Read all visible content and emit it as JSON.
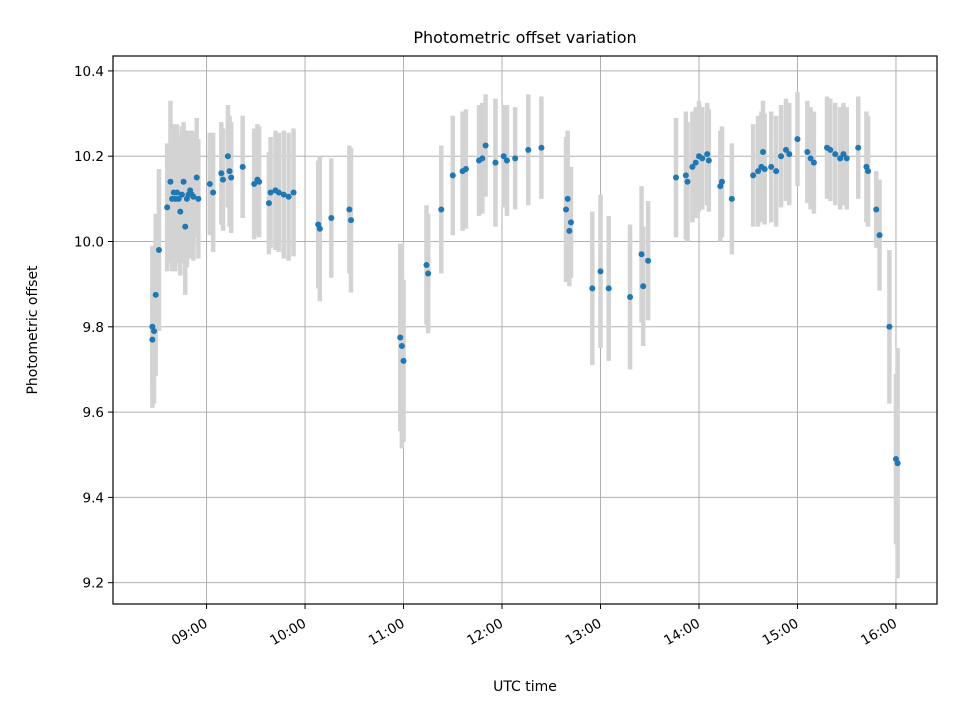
{
  "chart_data": {
    "type": "scatter",
    "title": "Photometric offset variation",
    "xlabel": "UTC time",
    "ylabel": "Photometric offset",
    "xlim": [
      "08:03",
      "16:25"
    ],
    "ylim": [
      9.15,
      10.435
    ],
    "grid": true,
    "xticks": [
      "09:00",
      "10:00",
      "11:00",
      "12:00",
      "13:00",
      "14:00",
      "15:00",
      "16:00"
    ],
    "yticks": [
      "9.2",
      "9.4",
      "9.6",
      "9.8",
      "10.0",
      "10.2",
      "10.4"
    ],
    "colors": {
      "point": "#1f77b4",
      "errorbar": "#d3d3d3",
      "grid": "#b0b0b0"
    },
    "points": [
      {
        "x": "08:27",
        "y": 9.77,
        "err": 0.12
      },
      {
        "x": "08:27",
        "y": 9.8,
        "err": 0.19
      },
      {
        "x": "08:28",
        "y": 9.79,
        "err": 0.17
      },
      {
        "x": "08:29",
        "y": 9.875,
        "err": 0.19
      },
      {
        "x": "08:31",
        "y": 9.98,
        "err": 0.19
      },
      {
        "x": "08:36",
        "y": 10.08,
        "err": 0.15
      },
      {
        "x": "08:38",
        "y": 10.14,
        "err": 0.19
      },
      {
        "x": "08:39",
        "y": 10.1,
        "err": 0.17
      },
      {
        "x": "08:40",
        "y": 10.115,
        "err": 0.16
      },
      {
        "x": "08:41",
        "y": 10.1,
        "err": 0.17
      },
      {
        "x": "08:42",
        "y": 10.115,
        "err": 0.16
      },
      {
        "x": "08:43",
        "y": 10.1,
        "err": 0.15
      },
      {
        "x": "08:44",
        "y": 10.07,
        "err": 0.15
      },
      {
        "x": "08:45",
        "y": 10.11,
        "err": 0.16
      },
      {
        "x": "08:46",
        "y": 10.14,
        "err": 0.14
      },
      {
        "x": "08:47",
        "y": 10.035,
        "err": 0.16
      },
      {
        "x": "08:48",
        "y": 10.1,
        "err": 0.16
      },
      {
        "x": "08:49",
        "y": 10.11,
        "err": 0.15
      },
      {
        "x": "08:50",
        "y": 10.12,
        "err": 0.14
      },
      {
        "x": "08:51",
        "y": 10.11,
        "err": 0.15
      },
      {
        "x": "08:52",
        "y": 10.105,
        "err": 0.15
      },
      {
        "x": "08:54",
        "y": 10.15,
        "err": 0.14
      },
      {
        "x": "08:55",
        "y": 10.1,
        "err": 0.14
      },
      {
        "x": "09:02",
        "y": 10.135,
        "err": 0.12
      },
      {
        "x": "09:04",
        "y": 10.115,
        "err": 0.14
      },
      {
        "x": "09:09",
        "y": 10.16,
        "err": 0.12
      },
      {
        "x": "09:10",
        "y": 10.145,
        "err": 0.12
      },
      {
        "x": "09:13",
        "y": 10.2,
        "err": 0.12
      },
      {
        "x": "09:14",
        "y": 10.165,
        "err": 0.13
      },
      {
        "x": "09:15",
        "y": 10.15,
        "err": 0.13
      },
      {
        "x": "09:22",
        "y": 10.175,
        "err": 0.12
      },
      {
        "x": "09:29",
        "y": 10.135,
        "err": 0.13
      },
      {
        "x": "09:31",
        "y": 10.145,
        "err": 0.13
      },
      {
        "x": "09:32",
        "y": 10.14,
        "err": 0.13
      },
      {
        "x": "09:38",
        "y": 10.09,
        "err": 0.12
      },
      {
        "x": "09:39",
        "y": 10.115,
        "err": 0.13
      },
      {
        "x": "09:42",
        "y": 10.12,
        "err": 0.14
      },
      {
        "x": "09:44",
        "y": 10.115,
        "err": 0.14
      },
      {
        "x": "09:47",
        "y": 10.11,
        "err": 0.15
      },
      {
        "x": "09:50",
        "y": 10.105,
        "err": 0.15
      },
      {
        "x": "09:53",
        "y": 10.115,
        "err": 0.15
      },
      {
        "x": "10:08",
        "y": 10.04,
        "err": 0.15
      },
      {
        "x": "10:09",
        "y": 10.03,
        "err": 0.17
      },
      {
        "x": "10:16",
        "y": 10.055,
        "err": 0.14
      },
      {
        "x": "10:27",
        "y": 10.075,
        "err": 0.15
      },
      {
        "x": "10:28",
        "y": 10.05,
        "err": 0.17
      },
      {
        "x": "10:58",
        "y": 9.775,
        "err": 0.22
      },
      {
        "x": "10:59",
        "y": 9.755,
        "err": 0.24
      },
      {
        "x": "11:00",
        "y": 9.72,
        "err": 0.19
      },
      {
        "x": "11:14",
        "y": 9.945,
        "err": 0.14
      },
      {
        "x": "11:15",
        "y": 9.925,
        "err": 0.14
      },
      {
        "x": "11:23",
        "y": 10.075,
        "err": 0.15
      },
      {
        "x": "11:30",
        "y": 10.155,
        "err": 0.14
      },
      {
        "x": "11:36",
        "y": 10.165,
        "err": 0.14
      },
      {
        "x": "11:38",
        "y": 10.17,
        "err": 0.14
      },
      {
        "x": "11:46",
        "y": 10.19,
        "err": 0.13
      },
      {
        "x": "11:48",
        "y": 10.195,
        "err": 0.13
      },
      {
        "x": "11:50",
        "y": 10.225,
        "err": 0.12
      },
      {
        "x": "11:56",
        "y": 10.185,
        "err": 0.15
      },
      {
        "x": "12:01",
        "y": 10.2,
        "err": 0.12
      },
      {
        "x": "12:03",
        "y": 10.19,
        "err": 0.13
      },
      {
        "x": "12:08",
        "y": 10.195,
        "err": 0.12
      },
      {
        "x": "12:16",
        "y": 10.215,
        "err": 0.13
      },
      {
        "x": "12:24",
        "y": 10.22,
        "err": 0.12
      },
      {
        "x": "12:39",
        "y": 10.075,
        "err": 0.17
      },
      {
        "x": "12:40",
        "y": 10.1,
        "err": 0.16
      },
      {
        "x": "12:41",
        "y": 10.025,
        "err": 0.13
      },
      {
        "x": "12:42",
        "y": 10.045,
        "err": 0.13
      },
      {
        "x": "12:55",
        "y": 9.89,
        "err": 0.18
      },
      {
        "x": "13:00",
        "y": 9.93,
        "err": 0.18
      },
      {
        "x": "13:05",
        "y": 9.89,
        "err": 0.17
      },
      {
        "x": "13:18",
        "y": 9.87,
        "err": 0.17
      },
      {
        "x": "13:25",
        "y": 9.97,
        "err": 0.16
      },
      {
        "x": "13:26",
        "y": 9.895,
        "err": 0.14
      },
      {
        "x": "13:29",
        "y": 9.955,
        "err": 0.14
      },
      {
        "x": "13:46",
        "y": 10.15,
        "err": 0.14
      },
      {
        "x": "13:52",
        "y": 10.155,
        "err": 0.15
      },
      {
        "x": "13:53",
        "y": 10.14,
        "err": 0.14
      },
      {
        "x": "13:56",
        "y": 10.175,
        "err": 0.13
      },
      {
        "x": "13:58",
        "y": 10.185,
        "err": 0.13
      },
      {
        "x": "14:00",
        "y": 10.2,
        "err": 0.13
      },
      {
        "x": "14:02",
        "y": 10.195,
        "err": 0.12
      },
      {
        "x": "14:05",
        "y": 10.205,
        "err": 0.12
      },
      {
        "x": "14:06",
        "y": 10.19,
        "err": 0.12
      },
      {
        "x": "14:13",
        "y": 10.13,
        "err": 0.13
      },
      {
        "x": "14:14",
        "y": 10.14,
        "err": 0.13
      },
      {
        "x": "14:20",
        "y": 10.1,
        "err": 0.13
      },
      {
        "x": "14:33",
        "y": 10.155,
        "err": 0.12
      },
      {
        "x": "14:36",
        "y": 10.165,
        "err": 0.13
      },
      {
        "x": "14:38",
        "y": 10.175,
        "err": 0.13
      },
      {
        "x": "14:39",
        "y": 10.21,
        "err": 0.12
      },
      {
        "x": "14:40",
        "y": 10.17,
        "err": 0.13
      },
      {
        "x": "14:44",
        "y": 10.175,
        "err": 0.13
      },
      {
        "x": "14:47",
        "y": 10.165,
        "err": 0.13
      },
      {
        "x": "14:50",
        "y": 10.2,
        "err": 0.12
      },
      {
        "x": "14:53",
        "y": 10.215,
        "err": 0.12
      },
      {
        "x": "14:55",
        "y": 10.205,
        "err": 0.12
      },
      {
        "x": "15:00",
        "y": 10.24,
        "err": 0.11
      },
      {
        "x": "15:06",
        "y": 10.21,
        "err": 0.12
      },
      {
        "x": "15:08",
        "y": 10.195,
        "err": 0.12
      },
      {
        "x": "15:10",
        "y": 10.185,
        "err": 0.12
      },
      {
        "x": "15:18",
        "y": 10.22,
        "err": 0.12
      },
      {
        "x": "15:20",
        "y": 10.215,
        "err": 0.12
      },
      {
        "x": "15:23",
        "y": 10.205,
        "err": 0.12
      },
      {
        "x": "15:26",
        "y": 10.195,
        "err": 0.12
      },
      {
        "x": "15:28",
        "y": 10.205,
        "err": 0.12
      },
      {
        "x": "15:30",
        "y": 10.195,
        "err": 0.12
      },
      {
        "x": "15:37",
        "y": 10.22,
        "err": 0.12
      },
      {
        "x": "15:42",
        "y": 10.175,
        "err": 0.13
      },
      {
        "x": "15:43",
        "y": 10.165,
        "err": 0.13
      },
      {
        "x": "15:48",
        "y": 10.075,
        "err": 0.09
      },
      {
        "x": "15:50",
        "y": 10.015,
        "err": 0.13
      },
      {
        "x": "15:56",
        "y": 9.8,
        "err": 0.18
      },
      {
        "x": "16:00",
        "y": 9.49,
        "err": 0.2
      },
      {
        "x": "16:01",
        "y": 9.48,
        "err": 0.27
      }
    ]
  }
}
